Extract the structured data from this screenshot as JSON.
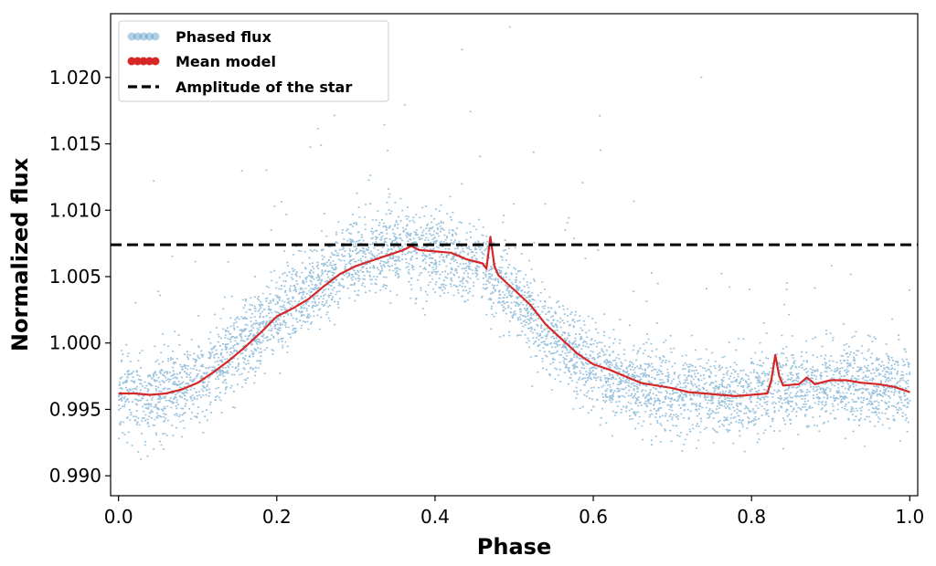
{
  "chart_data": {
    "type": "scatter",
    "title": "",
    "xlabel": "Phase",
    "ylabel": "Normalized flux",
    "xlim": [
      -0.01,
      1.01
    ],
    "ylim": [
      0.9885,
      1.0248
    ],
    "x_ticks": [
      0.0,
      0.2,
      0.4,
      0.6,
      0.8,
      1.0
    ],
    "x_tick_labels": [
      "0.0",
      "0.2",
      "0.4",
      "0.6",
      "0.8",
      "1.0"
    ],
    "y_ticks": [
      0.99,
      0.995,
      1.0,
      1.005,
      1.01,
      1.015,
      1.02
    ],
    "y_tick_labels": [
      "0.990",
      "0.995",
      "1.000",
      "1.005",
      "1.010",
      "1.015",
      "1.020"
    ],
    "grid": false,
    "legend_position": "top-left",
    "colors": {
      "phased_flux": "#1f77b4",
      "mean_model": "#d62728",
      "amplitude": "#000000"
    },
    "series": [
      {
        "name": "Phased flux",
        "kind": "scatter",
        "density_envelope": {
          "x": [
            0.0,
            0.05,
            0.1,
            0.15,
            0.2,
            0.25,
            0.3,
            0.35,
            0.4,
            0.45,
            0.5,
            0.55,
            0.6,
            0.65,
            0.7,
            0.75,
            0.8,
            0.85,
            0.9,
            0.95,
            1.0
          ],
          "center": [
            0.9962,
            0.9961,
            0.9972,
            0.9995,
            1.0023,
            1.0046,
            1.0064,
            1.0072,
            1.0069,
            1.006,
            1.0036,
            1.0005,
            0.9981,
            0.9968,
            0.9962,
            0.9961,
            0.9962,
            0.9969,
            0.997,
            0.9968,
            0.9964
          ],
          "spread": 0.0015
        }
      },
      {
        "name": "Mean model",
        "kind": "line",
        "x": [
          0.0,
          0.02,
          0.04,
          0.06,
          0.08,
          0.1,
          0.12,
          0.14,
          0.16,
          0.18,
          0.2,
          0.22,
          0.24,
          0.26,
          0.28,
          0.3,
          0.32,
          0.34,
          0.36,
          0.37,
          0.38,
          0.4,
          0.42,
          0.44,
          0.46,
          0.465,
          0.47,
          0.475,
          0.48,
          0.5,
          0.52,
          0.54,
          0.56,
          0.58,
          0.6,
          0.62,
          0.64,
          0.66,
          0.68,
          0.7,
          0.72,
          0.74,
          0.76,
          0.78,
          0.8,
          0.82,
          0.825,
          0.83,
          0.835,
          0.84,
          0.86,
          0.87,
          0.88,
          0.9,
          0.92,
          0.94,
          0.96,
          0.98,
          1.0
        ],
        "y": [
          0.9962,
          0.9962,
          0.9961,
          0.9962,
          0.9965,
          0.997,
          0.9978,
          0.9987,
          0.9997,
          1.0008,
          1.002,
          1.0026,
          1.0033,
          1.0043,
          1.0052,
          1.0058,
          1.0062,
          1.0066,
          1.007,
          1.0073,
          1.007,
          1.0069,
          1.0068,
          1.0063,
          1.006,
          1.0056,
          1.008,
          1.0058,
          1.0051,
          1.004,
          1.0029,
          1.0014,
          1.0003,
          0.9992,
          0.9984,
          0.998,
          0.9975,
          0.997,
          0.9968,
          0.9966,
          0.9963,
          0.9962,
          0.9961,
          0.996,
          0.9961,
          0.9962,
          0.9972,
          0.9991,
          0.9975,
          0.9968,
          0.9969,
          0.9974,
          0.9969,
          0.9972,
          0.9972,
          0.997,
          0.9969,
          0.9967,
          0.9963
        ]
      },
      {
        "name": "Amplitude of the star",
        "kind": "hline",
        "y": 1.0074
      }
    ]
  }
}
